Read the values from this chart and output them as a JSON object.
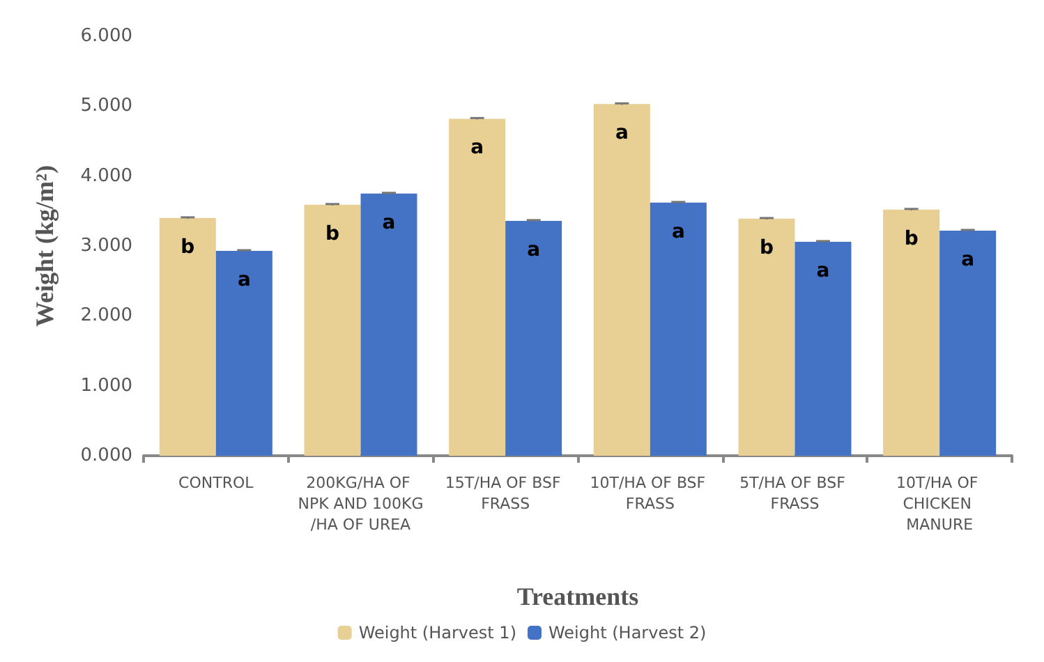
{
  "chart_data": {
    "type": "bar",
    "xlabel": "Treatments",
    "ylabel": "Weight (kg/m²)",
    "categories": [
      "CONTROL",
      "200KG/HA OF NPK AND 100KG/HA OF UREA",
      "15T/HA OF BSF FRASS",
      "10T/HA OF BSF FRASS",
      "5T/HA OF BSF FRASS",
      "10T/HA OF CHICKEN MANURE"
    ],
    "series": [
      {
        "name": "Weight (Harvest 1)",
        "color": "#e8cf94",
        "values": [
          3.4,
          3.59,
          4.82,
          5.03,
          3.39,
          3.52
        ],
        "errors": [
          0.01,
          0.01,
          0.01,
          0.01,
          0.01,
          0.01
        ],
        "value_labels": [
          "b",
          "b",
          "a",
          "a",
          "b",
          "b"
        ]
      },
      {
        "name": "Weight (Harvest 2)",
        "color": "#4472c4",
        "values": [
          2.93,
          3.75,
          3.36,
          3.62,
          3.06,
          3.22
        ],
        "errors": [
          0.01,
          0.01,
          0.01,
          0.01,
          0.01,
          0.01
        ],
        "value_labels": [
          "a",
          "a",
          "a",
          "a",
          "a",
          "a"
        ]
      }
    ],
    "ylim": [
      0,
      6
    ],
    "yticks": [
      {
        "value": 0,
        "label": "0.000"
      },
      {
        "value": 1,
        "label": "1.000"
      },
      {
        "value": 2,
        "label": "2.000"
      },
      {
        "value": 3,
        "label": "3.000"
      },
      {
        "value": 4,
        "label": "4.000"
      },
      {
        "value": 5,
        "label": "5.000"
      },
      {
        "value": 6,
        "label": "6.000"
      }
    ],
    "grid": false,
    "legend": "bottom"
  }
}
